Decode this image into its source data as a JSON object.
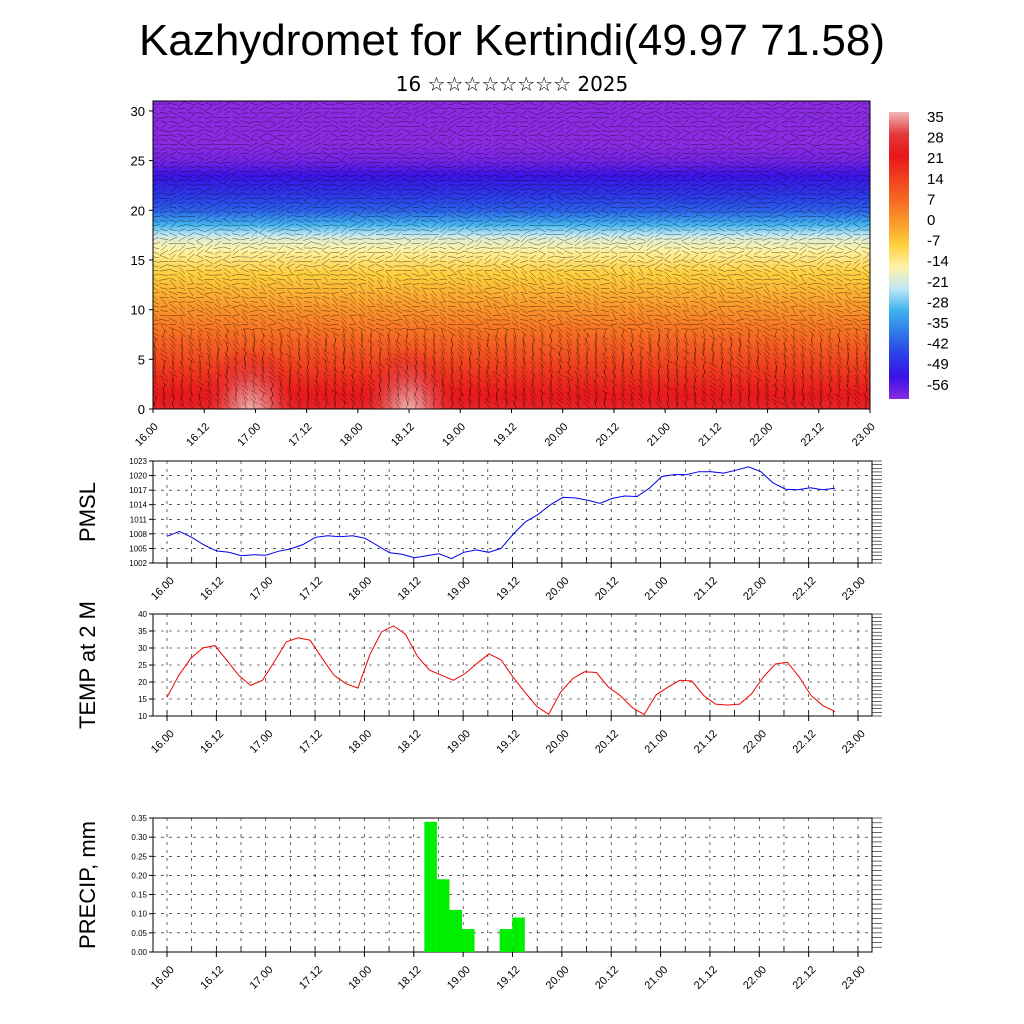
{
  "header": {
    "title": "Kazhydromet for Kertindi(49.97 71.58)",
    "subtitle": "16 ☆☆☆☆☆☆☆☆ 2025"
  },
  "chart_data": [
    {
      "type": "heatmap",
      "name": "cross-section",
      "y_ticks": [
        "0",
        "5",
        "10",
        "15",
        "20",
        "25",
        "30"
      ],
      "ylim": [
        0,
        31
      ],
      "x_ticks": [
        "16.00",
        "16.12",
        "17.00",
        "17.12",
        "18.00",
        "18.12",
        "19.00",
        "19.12",
        "20.00",
        "20.12",
        "21.00",
        "21.12",
        "22.00",
        "22.12",
        "23.00"
      ],
      "colorbar": {
        "labels": [
          "35",
          "28",
          "21",
          "14",
          "7",
          "0",
          "-7",
          "-14",
          "-21",
          "-28",
          "-35",
          "-42",
          "-49",
          "-56"
        ],
        "colors": [
          "#f2b6b6",
          "#e23a3a",
          "#e8161b",
          "#f0401f",
          "#f66a22",
          "#fb9a2c",
          "#fdcf3c",
          "#fff2a6",
          "#bfe7f6",
          "#3fb2ee",
          "#2f78ea",
          "#2b3ee8",
          "#3a12e6",
          "#8a2be2"
        ]
      },
      "surface_warm_centers_x": [
        "17.00",
        "18.12"
      ]
    },
    {
      "type": "line",
      "name": "pmsl",
      "ylabel": "PMSL",
      "color": "#0000ee",
      "ylim": [
        1002,
        1023
      ],
      "y_ticks": [
        1002,
        1005,
        1008,
        1011,
        1014,
        1017,
        1020,
        1023
      ],
      "x_ticks": [
        "16.00",
        "16.12",
        "17.00",
        "17.12",
        "18.00",
        "18.12",
        "19.00",
        "19.12",
        "20.00",
        "20.12",
        "21.00",
        "21.12",
        "22.00",
        "22.12",
        "23.00"
      ],
      "values": [
        1007.5,
        1008.5,
        1007.3,
        1005.7,
        1004.5,
        1004.2,
        1003.5,
        1003.7,
        1003.6,
        1004.4,
        1004.9,
        1005.8,
        1007.3,
        1007.6,
        1007.4,
        1007.6,
        1007.1,
        1005.6,
        1004.1,
        1003.8,
        1003.1,
        1003.5,
        1003.9,
        1002.9,
        1004.2,
        1004.7,
        1004.2,
        1005.0,
        1008.0,
        1010.5,
        1012.0,
        1014.0,
        1015.5,
        1015.4,
        1014.9,
        1014.3,
        1015.3,
        1015.8,
        1015.7,
        1017.4,
        1019.8,
        1020.2,
        1020.2,
        1020.8,
        1020.8,
        1020.5,
        1021.1,
        1021.8,
        1020.8,
        1018.5,
        1017.2,
        1017.1,
        1017.5,
        1017.1,
        1017.4
      ]
    },
    {
      "type": "line",
      "name": "temperature",
      "ylabel": "TEMP at 2 M",
      "color": "#ee0000",
      "ylim": [
        10,
        40
      ],
      "y_ticks": [
        10,
        15,
        20,
        25,
        30,
        35,
        40
      ],
      "x_ticks": [
        "16.00",
        "16.12",
        "17.00",
        "17.12",
        "18.00",
        "18.12",
        "19.00",
        "19.12",
        "20.00",
        "20.12",
        "21.00",
        "21.12",
        "22.00",
        "22.12",
        "23.00"
      ],
      "values": [
        15.5,
        22.0,
        27.0,
        30.0,
        30.7,
        26.5,
        22.0,
        19.0,
        20.5,
        26.0,
        31.8,
        33.0,
        32.3,
        27.0,
        22.0,
        19.5,
        18.2,
        28.0,
        34.8,
        36.5,
        34.0,
        27.5,
        23.5,
        22.0,
        20.5,
        22.5,
        25.5,
        28.3,
        26.5,
        21.5,
        17.0,
        12.8,
        10.5,
        17.0,
        21.0,
        23.0,
        22.8,
        18.5,
        16.0,
        12.5,
        10.4,
        16.2,
        18.5,
        20.5,
        20.3,
        16.0,
        13.5,
        13.2,
        13.5,
        16.5,
        21.5,
        25.3,
        25.8,
        21.5,
        16.0,
        13.0,
        11.3
      ]
    },
    {
      "type": "bar",
      "name": "precipitation",
      "ylabel": "PRECIP, mm",
      "color": "#00ee00",
      "ylim": [
        0,
        0.35
      ],
      "y_ticks": [
        "0.00",
        "0.05",
        "0.10",
        "0.15",
        "0.20",
        "0.25",
        "0.30",
        "0.35"
      ],
      "x_ticks": [
        "16.00",
        "16.12",
        "17.00",
        "17.12",
        "18.00",
        "18.12",
        "19.00",
        "19.12",
        "20.00",
        "20.12",
        "21.00",
        "21.12",
        "22.00",
        "22.12",
        "23.00"
      ],
      "bars": [
        {
          "t": 21,
          "value": 0.34
        },
        {
          "t": 22,
          "value": 0.19
        },
        {
          "t": 23,
          "value": 0.11
        },
        {
          "t": 24,
          "value": 0.06
        },
        {
          "t": 27,
          "value": 0.06
        },
        {
          "t": 28,
          "value": 0.09
        }
      ]
    }
  ]
}
